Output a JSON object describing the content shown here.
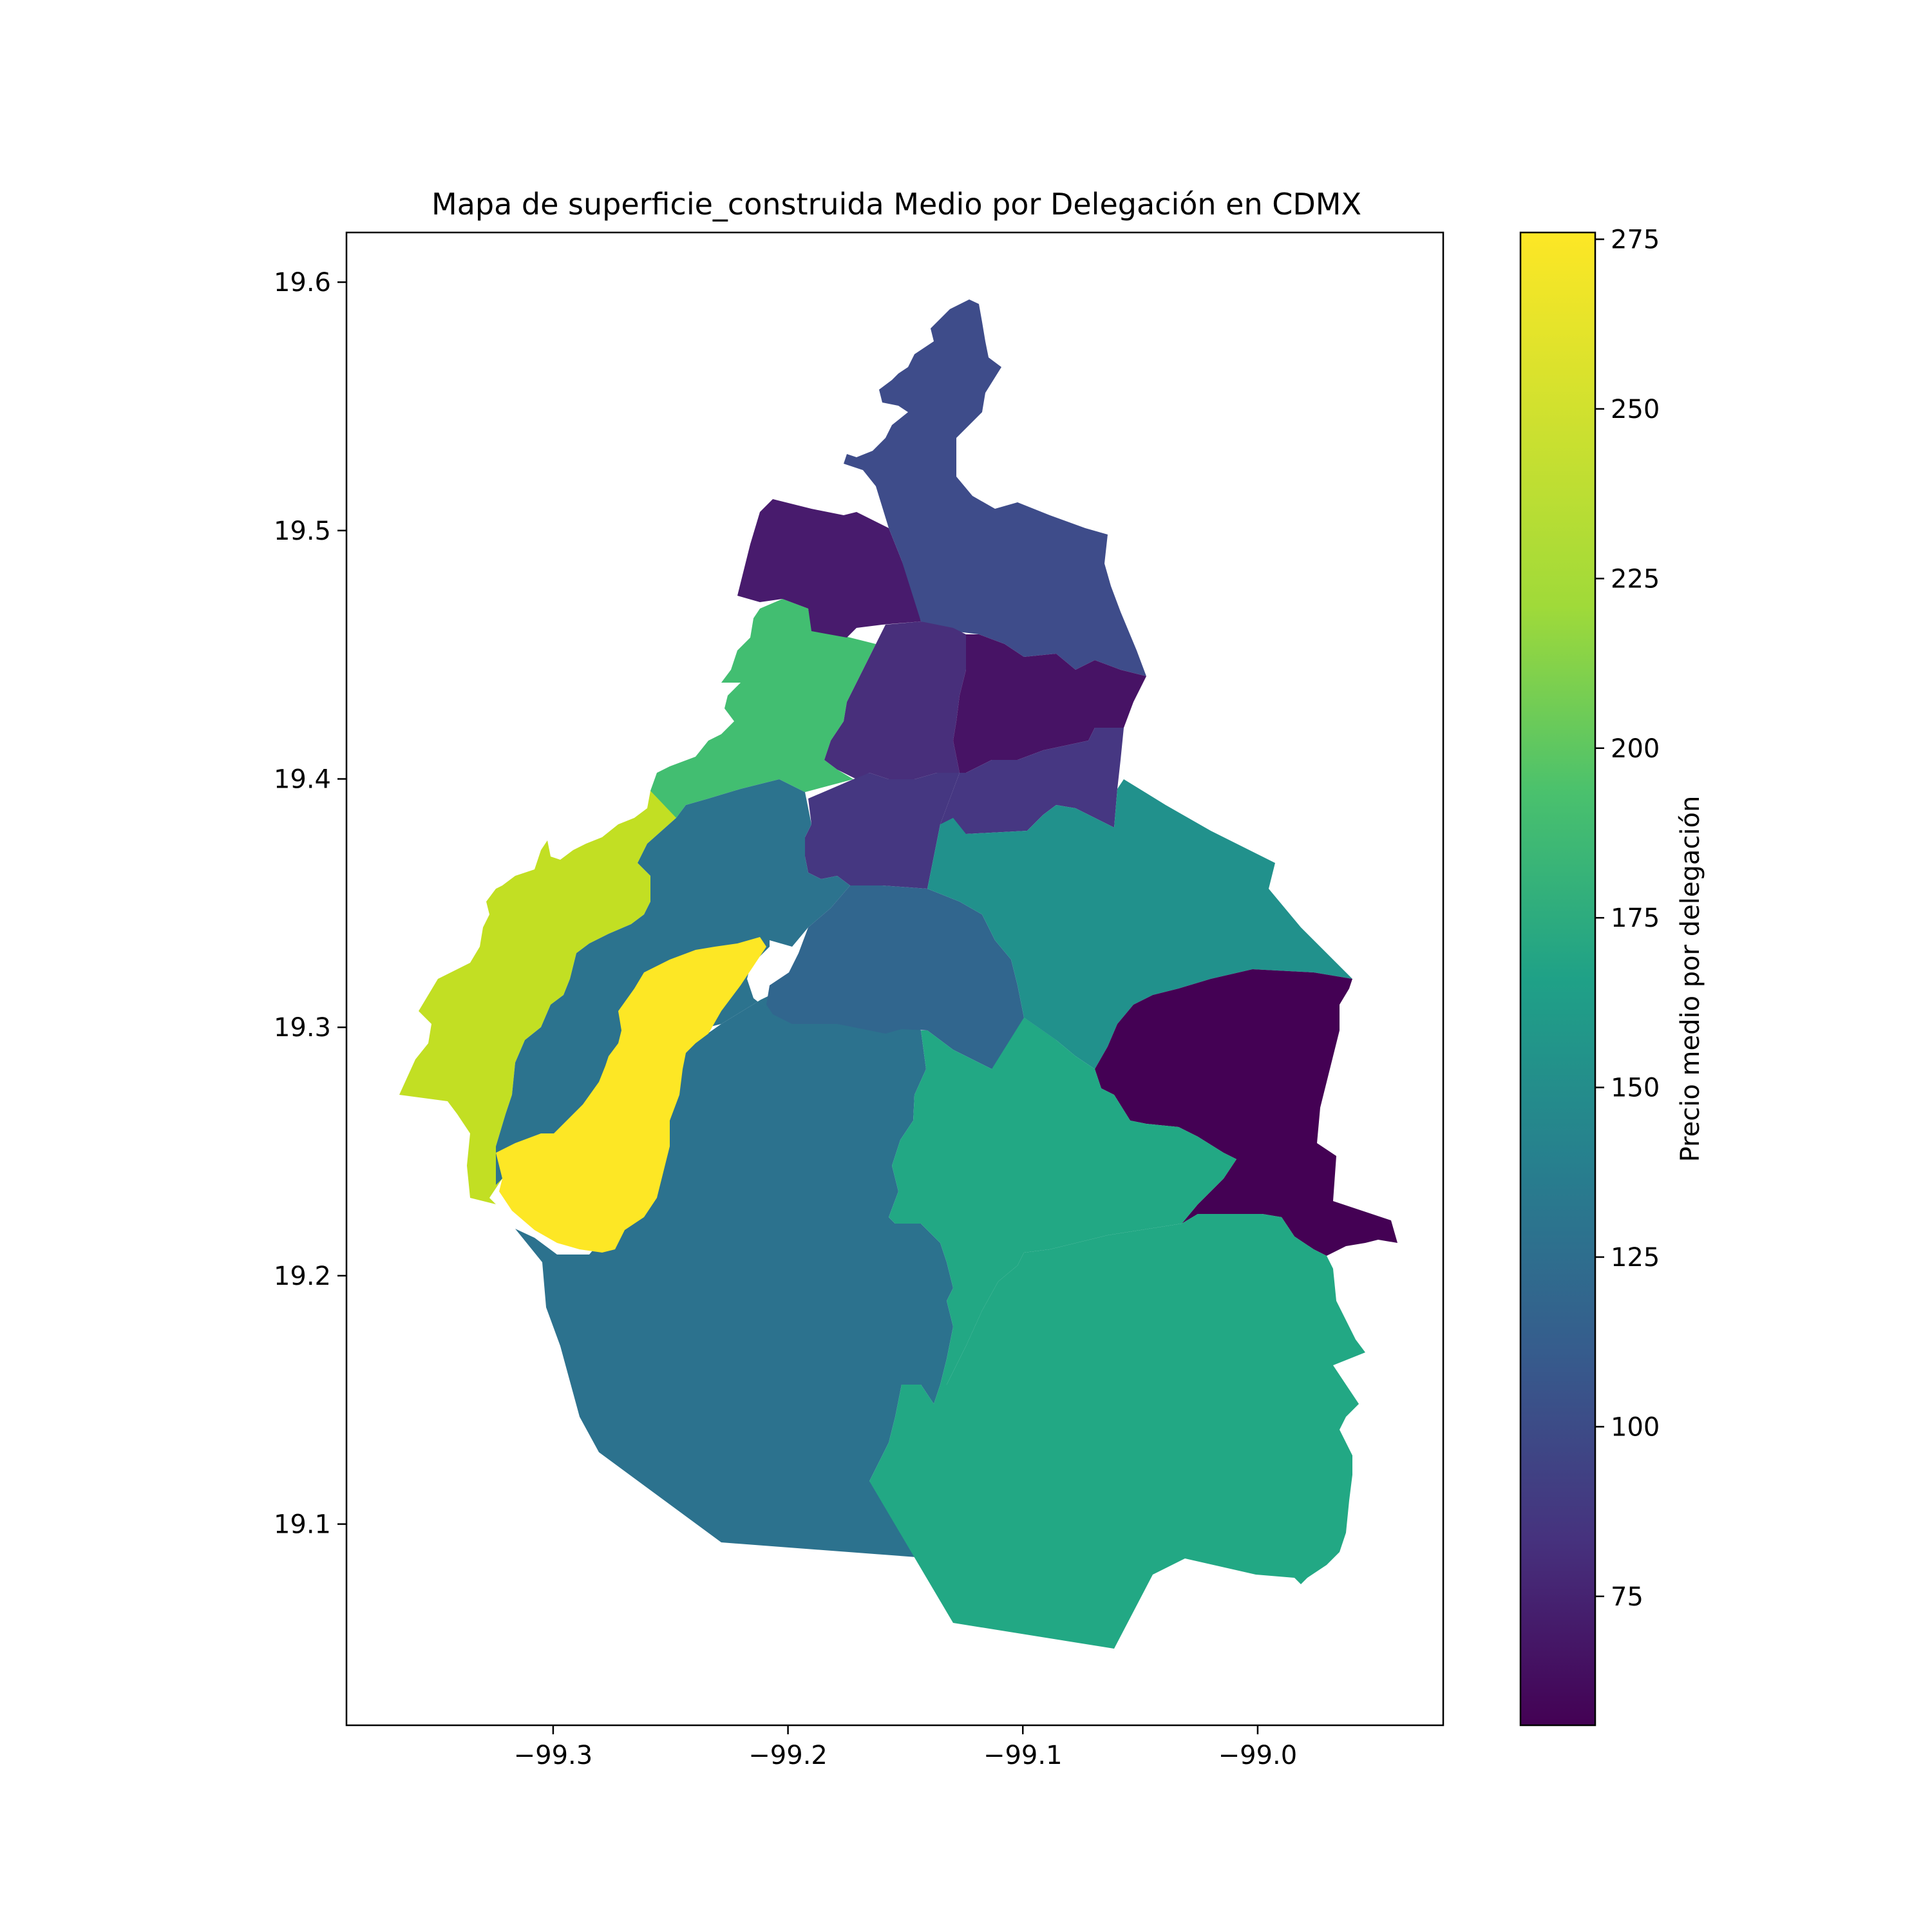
{
  "chart_data": {
    "type": "choropleth",
    "title": "Mapa de superficie_construida Medio por Delegación en CDMX",
    "xlabel": "",
    "ylabel": "",
    "xlim": [
      -99.388,
      -98.921
    ],
    "ylim": [
      19.019,
      19.62
    ],
    "x_ticks": [
      -99.3,
      -99.2,
      -99.1,
      -99.0
    ],
    "x_tick_labels": [
      "−99.3",
      "−99.2",
      "−99.1",
      "−99.0"
    ],
    "y_ticks": [
      19.1,
      19.2,
      19.3,
      19.4,
      19.5,
      19.6
    ],
    "y_tick_labels": [
      "19.1",
      "19.2",
      "19.3",
      "19.4",
      "19.5",
      "19.6"
    ],
    "grid": false,
    "colormap": "viridis",
    "colorbar": {
      "label": "Precio medio por delegación",
      "range": [
        56,
        276
      ],
      "ticks": [
        75,
        100,
        125,
        150,
        175,
        200,
        225,
        250,
        275
      ],
      "tick_labels": [
        "75",
        "100",
        "125",
        "150",
        "175",
        "200",
        "225",
        "250",
        "275"
      ]
    },
    "regions": [
      {
        "id": "north",
        "value": 108,
        "color": "#3e4c8a"
      },
      {
        "id": "northwest",
        "value": 68,
        "color": "#481b6d"
      },
      {
        "id": "west-green",
        "value": 218,
        "color": "#42be71"
      },
      {
        "id": "central",
        "value": 88,
        "color": "#482f7b"
      },
      {
        "id": "central-east",
        "value": 66,
        "color": "#471365"
      },
      {
        "id": "south-central",
        "value": 86,
        "color": "#463782"
      },
      {
        "id": "center-south",
        "value": 85,
        "color": "#453781"
      },
      {
        "id": "west",
        "value": 144,
        "color": "#2c738e"
      },
      {
        "id": "far-west",
        "value": 253,
        "color": "#c2df23"
      },
      {
        "id": "southwest",
        "value": 276,
        "color": "#fde725"
      },
      {
        "id": "south-center",
        "value": 126,
        "color": "#31668e"
      },
      {
        "id": "east",
        "value": 170,
        "color": "#21918c"
      },
      {
        "id": "far-east",
        "value": 56,
        "color": "#440154"
      },
      {
        "id": "southeast-north",
        "value": 190,
        "color": "#22a884"
      },
      {
        "id": "southeast",
        "value": 190,
        "color": "#22a884"
      },
      {
        "id": "south",
        "value": 143,
        "color": "#2c728e"
      }
    ]
  }
}
